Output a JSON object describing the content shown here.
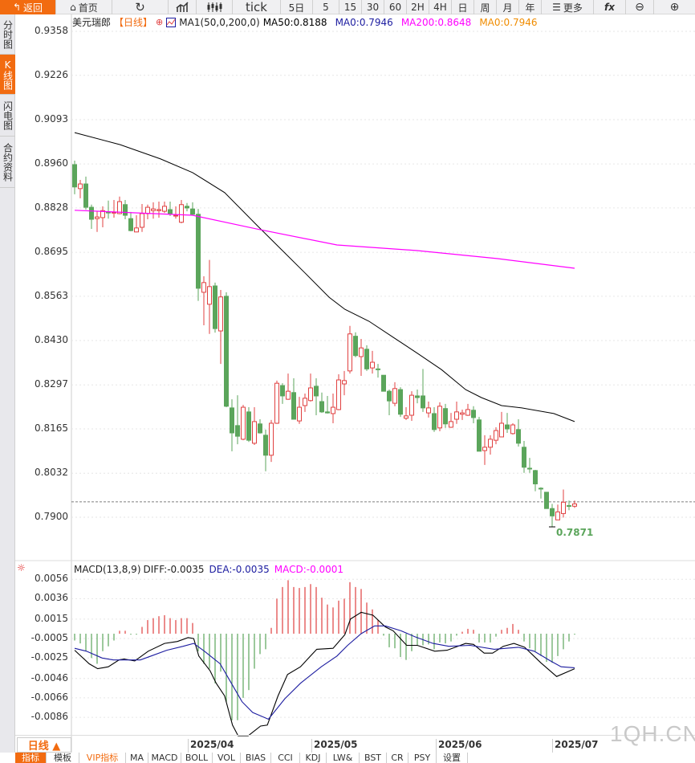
{
  "toolbar": {
    "back": "返回",
    "home": "首页",
    "tick": "tick",
    "five_day": "5日",
    "periods": [
      "5",
      "15",
      "30",
      "60",
      "2H",
      "4H",
      "日",
      "周",
      "月",
      "年"
    ],
    "more": "更多",
    "fx": "fx"
  },
  "side_tabs": [
    "分时图",
    "K线图",
    "闪电图",
    "合约资料"
  ],
  "legend": {
    "symbol": "美元瑞郎",
    "period": "【日线】",
    "ma_name": "MA1(50,0,200,0)",
    "ma50": "MA50:0.8188",
    "ma0a": "MA0:0.7946",
    "ma200": "MA200:0.8648",
    "ma0b": "MA0:0.7946",
    "colors": {
      "ma50": "#000000",
      "ma0a": "#1c1ca0",
      "ma200": "#ff00ff",
      "ma0b": "#f08c00"
    }
  },
  "macd_legend": {
    "name": "MACD(13,8,9)",
    "diff": "DIFF:-0.0035",
    "dea": "DEA:-0.0035",
    "macd": "MACD:-0.0001"
  },
  "price_axis": [
    "0.9358",
    "0.9226",
    "0.9093",
    "0.8960",
    "0.8828",
    "0.8695",
    "0.8563",
    "0.8430",
    "0.8297",
    "0.8165",
    "0.8032",
    "0.7900"
  ],
  "macd_axis": [
    "0.0056",
    "0.0036",
    "0.0015",
    "-0.0005",
    "-0.0025",
    "-0.0046",
    "-0.0066",
    "-0.0086"
  ],
  "low_label": "0.7871",
  "period_box": "日线 ▲",
  "dates": [
    "2025/04",
    "2025/05",
    "2025/06",
    "2025/07"
  ],
  "bottom_tabs": [
    "指标",
    "模板",
    "VIP指标",
    "MA",
    "MACD",
    "BOLL",
    "VOL",
    "BIAS",
    "CCI",
    "KDJ",
    "LW&",
    "BST",
    "CR",
    "PSY",
    "设置"
  ],
  "watermark": "1QH.CN",
  "colors": {
    "up": "#e04040",
    "down": "#5ba55b",
    "accent": "#f26b10",
    "last_line": "#1e6fd9"
  },
  "chart_data": [
    {
      "type": "candlestick",
      "title": "美元瑞郎",
      "ylim": [
        0.785,
        0.9358
      ],
      "last_price": 0.7946,
      "low": 0.7871,
      "candles_ohlc": [
        [
          0.8958,
          0.897,
          0.8869,
          0.8891
        ],
        [
          0.8886,
          0.8912,
          0.8857,
          0.89
        ],
        [
          0.89,
          0.8922,
          0.8823,
          0.883
        ],
        [
          0.883,
          0.8838,
          0.8765,
          0.8794
        ],
        [
          0.8796,
          0.8818,
          0.8756,
          0.8801
        ],
        [
          0.8799,
          0.8833,
          0.877,
          0.882
        ],
        [
          0.8816,
          0.885,
          0.8796,
          0.8813
        ],
        [
          0.8813,
          0.8852,
          0.8799,
          0.8815
        ],
        [
          0.8811,
          0.8862,
          0.8809,
          0.8847
        ],
        [
          0.8838,
          0.8852,
          0.8794,
          0.8806
        ],
        [
          0.8796,
          0.8816,
          0.8758,
          0.876
        ],
        [
          0.8756,
          0.8806,
          0.8755,
          0.8768
        ],
        [
          0.877,
          0.884,
          0.8756,
          0.8811
        ],
        [
          0.8811,
          0.8838,
          0.8794,
          0.883
        ],
        [
          0.882,
          0.8845,
          0.8796,
          0.8825
        ],
        [
          0.882,
          0.8847,
          0.8799,
          0.8823
        ],
        [
          0.8818,
          0.8847,
          0.8813,
          0.8833
        ],
        [
          0.8823,
          0.8847,
          0.8804,
          0.8811
        ],
        [
          0.8804,
          0.8833,
          0.8796,
          0.8806
        ],
        [
          0.8785,
          0.8852,
          0.8782,
          0.8838
        ],
        [
          0.8833,
          0.8843,
          0.8818,
          0.8828
        ],
        [
          0.8825,
          0.8845,
          0.8807,
          0.8809
        ],
        [
          0.8809,
          0.8825,
          0.8549,
          0.8587
        ],
        [
          0.8575,
          0.8623,
          0.8476,
          0.8604
        ],
        [
          0.8539,
          0.8672,
          0.845,
          0.8592
        ],
        [
          0.8594,
          0.8604,
          0.8454,
          0.8466
        ],
        [
          0.8459,
          0.8582,
          0.836,
          0.8561
        ],
        [
          0.8563,
          0.8575,
          0.823,
          0.8233
        ],
        [
          0.8228,
          0.8254,
          0.8098,
          0.8153
        ],
        [
          0.8175,
          0.8266,
          0.8119,
          0.8143
        ],
        [
          0.8134,
          0.8237,
          0.8131,
          0.823
        ],
        [
          0.8216,
          0.823,
          0.8126,
          0.8131
        ],
        [
          0.8122,
          0.823,
          0.8117,
          0.8187
        ],
        [
          0.818,
          0.8194,
          0.8151,
          0.8153
        ],
        [
          0.8146,
          0.8163,
          0.8038,
          0.8086
        ],
        [
          0.8086,
          0.8192,
          0.8066,
          0.8182
        ],
        [
          0.8182,
          0.831,
          0.818,
          0.8302
        ],
        [
          0.8295,
          0.8302,
          0.824,
          0.8264
        ],
        [
          0.8254,
          0.8331,
          0.8252,
          0.8278
        ],
        [
          0.8274,
          0.8317,
          0.8194,
          0.8194
        ],
        [
          0.8189,
          0.8261,
          0.818,
          0.823
        ],
        [
          0.8235,
          0.8271,
          0.8216,
          0.8257
        ],
        [
          0.825,
          0.8331,
          0.8247,
          0.8288
        ],
        [
          0.8293,
          0.8317,
          0.8206,
          0.8264
        ],
        [
          0.8247,
          0.8274,
          0.8213,
          0.8216
        ],
        [
          0.8216,
          0.8264,
          0.8211,
          0.8213
        ],
        [
          0.8211,
          0.8271,
          0.8182,
          0.823
        ],
        [
          0.8223,
          0.8329,
          0.8221,
          0.8312
        ],
        [
          0.83,
          0.8339,
          0.8266,
          0.831
        ],
        [
          0.8339,
          0.8474,
          0.8331,
          0.845
        ],
        [
          0.8443,
          0.8455,
          0.838,
          0.8385
        ],
        [
          0.8382,
          0.8435,
          0.8324,
          0.8408
        ],
        [
          0.8404,
          0.8416,
          0.8339,
          0.8345
        ],
        [
          0.8348,
          0.8399,
          0.8331,
          0.8365
        ],
        [
          0.8345,
          0.836,
          0.8319,
          0.8343
        ],
        [
          0.8326,
          0.8326,
          0.8278,
          0.8278
        ],
        [
          0.8278,
          0.8283,
          0.8206,
          0.8249
        ],
        [
          0.8242,
          0.8305,
          0.8233,
          0.8286
        ],
        [
          0.8283,
          0.829,
          0.8201,
          0.8209
        ],
        [
          0.8197,
          0.823,
          0.8192,
          0.8204
        ],
        [
          0.8206,
          0.8278,
          0.8189,
          0.8266
        ],
        [
          0.8264,
          0.8283,
          0.8242,
          0.8259
        ],
        [
          0.8264,
          0.8345,
          0.8216,
          0.8228
        ],
        [
          0.8213,
          0.8247,
          0.8199,
          0.8228
        ],
        [
          0.8211,
          0.823,
          0.8156,
          0.8163
        ],
        [
          0.8168,
          0.8245,
          0.8158,
          0.8233
        ],
        [
          0.8226,
          0.824,
          0.8168,
          0.818
        ],
        [
          0.817,
          0.8213,
          0.8168,
          0.8187
        ],
        [
          0.8194,
          0.8247,
          0.818,
          0.8216
        ],
        [
          0.8209,
          0.8223,
          0.8192,
          0.8213
        ],
        [
          0.8206,
          0.824,
          0.8204,
          0.8223
        ],
        [
          0.8221,
          0.8233,
          0.8182,
          0.8199
        ],
        [
          0.8192,
          0.8201,
          0.8098,
          0.8098
        ],
        [
          0.81,
          0.8146,
          0.8057,
          0.811
        ],
        [
          0.811,
          0.8146,
          0.8088,
          0.8134
        ],
        [
          0.8131,
          0.817,
          0.8119,
          0.816
        ],
        [
          0.8141,
          0.8216,
          0.8141,
          0.8182
        ],
        [
          0.8177,
          0.8213,
          0.8153,
          0.8165
        ],
        [
          0.8151,
          0.8182,
          0.8148,
          0.8177
        ],
        [
          0.8163,
          0.8194,
          0.8112,
          0.8122
        ],
        [
          0.811,
          0.8129,
          0.8033,
          0.805
        ],
        [
          0.8047,
          0.8078,
          0.8033,
          0.8045
        ],
        [
          0.804,
          0.8042,
          0.7978,
          0.8
        ],
        [
          0.7987,
          0.799,
          0.7956,
          0.7985
        ],
        [
          0.7975,
          0.7975,
          0.7926,
          0.7926
        ],
        [
          0.7926,
          0.794,
          0.7871,
          0.7904
        ],
        [
          0.7892,
          0.7938,
          0.7892,
          0.7916
        ],
        [
          0.7911,
          0.7983,
          0.7899,
          0.7945
        ],
        [
          0.7935,
          0.795,
          0.7921,
          0.7933
        ],
        [
          0.7933,
          0.795,
          0.7928,
          0.794
        ]
      ],
      "ma50": [
        [
          1,
          0.9054
        ],
        [
          9.1,
          0.9018
        ],
        [
          16.3,
          0.8975
        ],
        [
          22,
          0.8934
        ],
        [
          27.7,
          0.8874
        ],
        [
          33.4,
          0.8777
        ],
        [
          37.7,
          0.8705
        ],
        [
          42,
          0.8633
        ],
        [
          46.3,
          0.856
        ],
        [
          49.1,
          0.8524
        ],
        [
          53.4,
          0.8488
        ],
        [
          57.7,
          0.844
        ],
        [
          62,
          0.8392
        ],
        [
          66.3,
          0.8343
        ],
        [
          70.6,
          0.8283
        ],
        [
          73.4,
          0.8259
        ],
        [
          77,
          0.8235
        ],
        [
          80.6,
          0.8228
        ],
        [
          86.3,
          0.8211
        ],
        [
          90,
          0.8187
        ]
      ],
      "ma200": [
        [
          1,
          0.8821
        ],
        [
          22,
          0.8806
        ],
        [
          33.4,
          0.8765
        ],
        [
          47.7,
          0.8717
        ],
        [
          62,
          0.87
        ],
        [
          76.3,
          0.8676
        ],
        [
          90,
          0.8647
        ]
      ],
      "dates": [
        "2025/04",
        "2025/05",
        "2025/06",
        "2025/07"
      ]
    },
    {
      "type": "bar+line",
      "title": "MACD(13,8,9)",
      "ylim": [
        -0.011,
        0.006
      ],
      "histogram": [
        -0.0007,
        -0.001,
        -0.0018,
        -0.0025,
        -0.0031,
        -0.0018,
        -0.0013,
        -0.0007,
        0.0003,
        0.0003,
        -0.0001,
        -0.0001,
        0.0007,
        0.0014,
        0.0016,
        0.0018,
        0.0019,
        0.0016,
        0.0014,
        0.0016,
        0.0016,
        0.0011,
        -0.0018,
        -0.0031,
        -0.0036,
        -0.0051,
        -0.0039,
        -0.007,
        -0.0089,
        -0.0089,
        -0.0066,
        -0.0058,
        -0.0036,
        -0.0021,
        -0.0016,
        0.0006,
        0.0036,
        0.0048,
        0.0055,
        0.0048,
        0.0047,
        0.0048,
        0.0051,
        0.0048,
        0.0037,
        0.003,
        0.0027,
        0.0034,
        0.0036,
        0.0053,
        0.0048,
        0.0046,
        0.0032,
        0.0025,
        0.0014,
        -0.0002,
        -0.0014,
        -0.0015,
        -0.0024,
        -0.0027,
        -0.0018,
        -0.0012,
        -0.0012,
        -0.0011,
        -0.0016,
        -0.0009,
        -0.001,
        -0.0008,
        -0.0002,
        0.0002,
        0.0005,
        0.0004,
        -0.0009,
        -0.0009,
        -0.0009,
        -0.0003,
        0.0004,
        0.0006,
        0.001,
        0.0004,
        -0.0008,
        -0.0015,
        -0.0018,
        -0.0023,
        -0.0029,
        -0.003,
        -0.0023,
        -0.0016,
        -0.0008,
        -0.0001
      ],
      "diff": [
        [
          1,
          -0.0017
        ],
        [
          3.6,
          -0.0031
        ],
        [
          5.1,
          -0.0036
        ],
        [
          7,
          -0.0034
        ],
        [
          8.9,
          -0.0027
        ],
        [
          9.8,
          -0.0026
        ],
        [
          11.7,
          -0.0028
        ],
        [
          14.1,
          -0.0018
        ],
        [
          17,
          -0.001
        ],
        [
          19.3,
          -0.0008
        ],
        [
          21.2,
          -0.0004
        ],
        [
          22.2,
          -0.0005
        ],
        [
          23.1,
          -0.0023
        ],
        [
          25.1,
          -0.0038
        ],
        [
          26.2,
          -0.0051
        ],
        [
          27.7,
          -0.0064
        ],
        [
          29.1,
          -0.0094
        ],
        [
          30.1,
          -0.0105
        ],
        [
          31.9,
          -0.0105
        ],
        [
          34.1,
          -0.0095
        ],
        [
          35.3,
          -0.0094
        ],
        [
          37.2,
          -0.0064
        ],
        [
          38.9,
          -0.0042
        ],
        [
          41.2,
          -0.0034
        ],
        [
          44.1,
          -0.0016
        ],
        [
          47,
          -0.0015
        ],
        [
          49.1,
          -0.0001
        ],
        [
          50.1,
          0.0015
        ],
        [
          52,
          0.0022
        ],
        [
          54.1,
          0.0019
        ],
        [
          56.3,
          0.0007
        ],
        [
          57.7,
          0.0003
        ],
        [
          60.1,
          -0.0012
        ],
        [
          62,
          -0.0012
        ],
        [
          65.1,
          -0.0018
        ],
        [
          67.3,
          -0.0017
        ],
        [
          70.6,
          -0.001
        ],
        [
          72,
          -0.0011
        ],
        [
          73.9,
          -0.002
        ],
        [
          75.4,
          -0.002
        ],
        [
          77.3,
          -0.0013
        ],
        [
          79.2,
          -0.001
        ],
        [
          81.1,
          -0.0014
        ],
        [
          84,
          -0.003
        ],
        [
          86.8,
          -0.0044
        ],
        [
          90,
          -0.0036
        ]
      ],
      "dea": [
        [
          1,
          -0.0015
        ],
        [
          3.1,
          -0.0018
        ],
        [
          5.9,
          -0.0025
        ],
        [
          7.9,
          -0.0027
        ],
        [
          12.7,
          -0.0027
        ],
        [
          14.6,
          -0.0023
        ],
        [
          17.4,
          -0.0017
        ],
        [
          20.3,
          -0.0013
        ],
        [
          22.2,
          -0.001
        ],
        [
          24.1,
          -0.0018
        ],
        [
          26.9,
          -0.0031
        ],
        [
          28.9,
          -0.0051
        ],
        [
          30.8,
          -0.007
        ],
        [
          32.7,
          -0.0081
        ],
        [
          35.5,
          -0.0088
        ],
        [
          38.4,
          -0.0067
        ],
        [
          41.2,
          -0.0051
        ],
        [
          44.9,
          -0.0034
        ],
        [
          47.7,
          -0.0023
        ],
        [
          49.6,
          -0.0012
        ],
        [
          52,
          0.0
        ],
        [
          54.4,
          0.0008
        ],
        [
          56.3,
          0.0008
        ],
        [
          59.1,
          0.0003
        ],
        [
          61.5,
          -0.0003
        ],
        [
          64.8,
          -0.001
        ],
        [
          67.6,
          -0.0013
        ],
        [
          71.4,
          -0.0012
        ],
        [
          75.7,
          -0.0016
        ],
        [
          80,
          -0.0014
        ],
        [
          82.8,
          -0.0018
        ],
        [
          85.7,
          -0.0028
        ],
        [
          87.6,
          -0.0034
        ],
        [
          90,
          -0.0035
        ]
      ]
    }
  ]
}
